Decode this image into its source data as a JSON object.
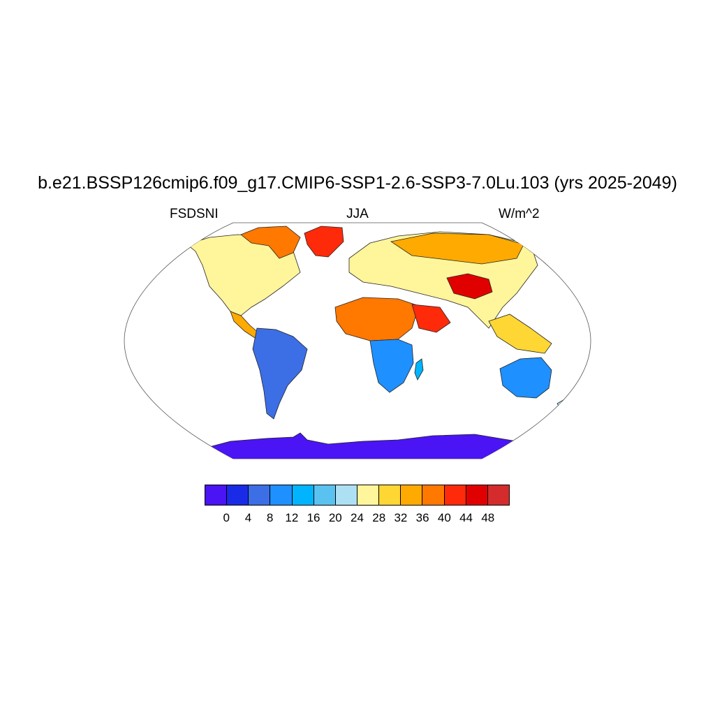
{
  "title": "b.e21.BSSP126cmip6.f09_g17.CMIP6-SSP1-2.6-SSP3-7.0Lu.103 (yrs 2025-2049)",
  "subtitles": {
    "left": "FSDSNI",
    "center": "JJA",
    "right": "W/m^2"
  },
  "colorbar": {
    "colors": [
      "#4a14f5",
      "#1a2be8",
      "#3c6ee6",
      "#1e90ff",
      "#00b4ff",
      "#5ac2f0",
      "#aee0f4",
      "#fff59a",
      "#ffd734",
      "#ffaa00",
      "#ff7800",
      "#ff2a0a",
      "#e10000",
      "#d42c2c"
    ],
    "labels": [
      "0",
      "4",
      "8",
      "12",
      "16",
      "20",
      "24",
      "28",
      "32",
      "36",
      "40",
      "44",
      "48"
    ]
  },
  "map": {
    "projection": "robinson",
    "ocean_color": "#ffffff",
    "regions": [
      {
        "name": "antarctica",
        "value_class": 1
      },
      {
        "name": "australia",
        "value_class": 4
      },
      {
        "name": "south-america",
        "value_class": 3
      },
      {
        "name": "southern-africa",
        "value_class": 4
      },
      {
        "name": "sahara",
        "value_class": 11
      },
      {
        "name": "arabia",
        "value_class": 12
      },
      {
        "name": "tibet",
        "value_class": 13
      },
      {
        "name": "north-america",
        "value_class": 8
      },
      {
        "name": "canadian-arctic",
        "value_class": 12
      },
      {
        "name": "greenland",
        "value_class": 12
      },
      {
        "name": "eurasia",
        "value_class": 8
      },
      {
        "name": "siberia",
        "value_class": 10
      }
    ]
  }
}
